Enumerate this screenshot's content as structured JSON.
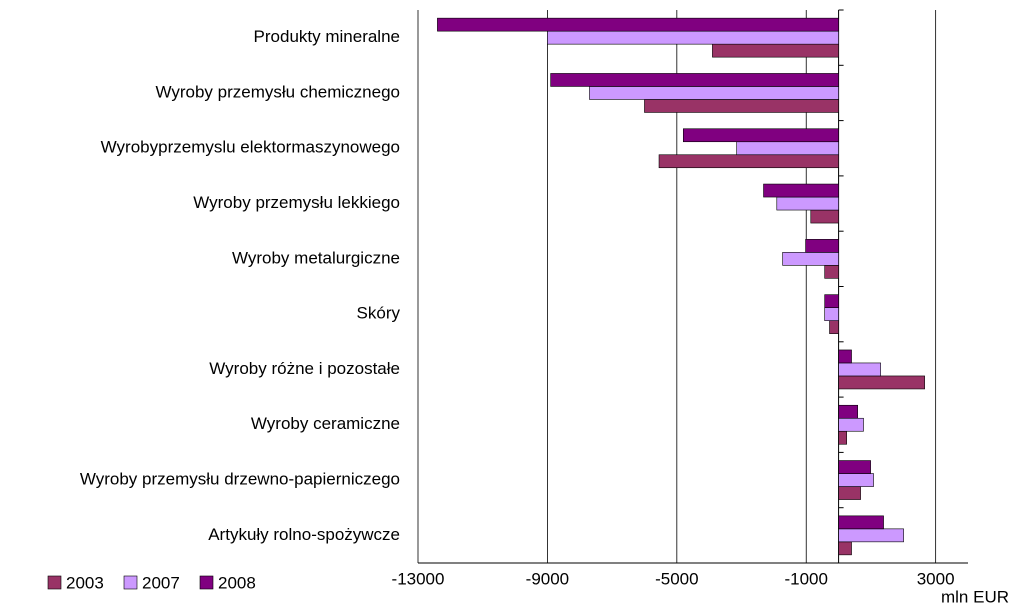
{
  "chart_data": {
    "type": "hbar",
    "categories": [
      "Produkty mineralne",
      "Wyroby przemysłu chemicznego",
      "Wyrobyprzemyslu elektormaszynowego",
      "Wyroby przemysłu lekkiego",
      "Wyroby metalurgiczne",
      "Skóry",
      "Wyroby różne i pozostałe",
      "Wyroby ceramiczne",
      "Wyroby przemysłu drzewno-papierniczego",
      "Artykuły rolno-spożywcze"
    ],
    "series": [
      {
        "name": "2003",
        "color": "#993366",
        "values": [
          -3900,
          -6000,
          -5550,
          -860,
          -430,
          -280,
          2660,
          250,
          680,
          400
        ]
      },
      {
        "name": "2007",
        "color": "#cc99ff",
        "values": [
          -9000,
          -7700,
          -3150,
          -1910,
          -1730,
          -430,
          1300,
          770,
          1080,
          2010
        ]
      },
      {
        "name": "2008",
        "color": "#800080",
        "values": [
          -12400,
          -8900,
          -4800,
          -2320,
          -1020,
          -430,
          400,
          590,
          990,
          1390
        ]
      }
    ],
    "xlim": [
      -13000,
      4000
    ],
    "xticks": [
      -13000,
      -9000,
      -5000,
      -1000,
      3000
    ],
    "x_label": "mln EUR",
    "grid": true
  }
}
